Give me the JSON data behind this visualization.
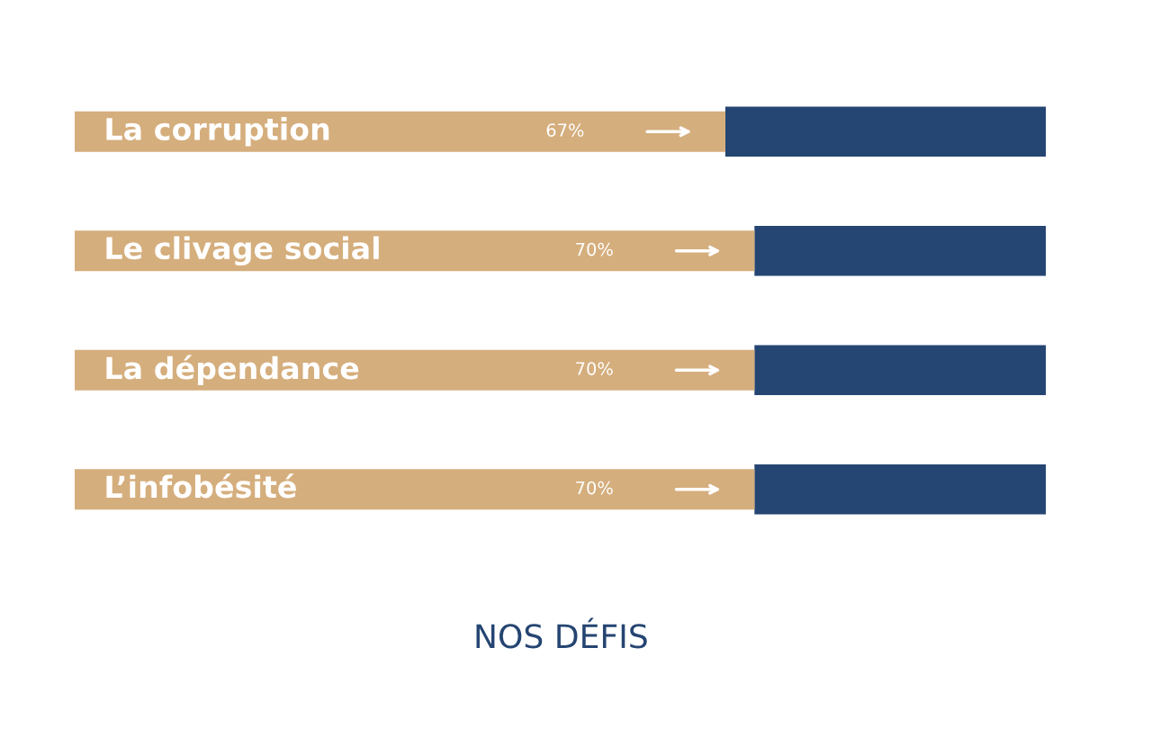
{
  "chart_data": {
    "type": "bar",
    "orientation": "horizontal",
    "stacked": true,
    "title": "NOS DÉFIS",
    "categories": [
      "La corruption",
      "Le clivage social",
      "La dépendance",
      "L’infobésité"
    ],
    "series": [
      {
        "color": "#d5ae7d",
        "values": [
          67,
          70,
          70,
          70
        ],
        "value_labels": [
          "67%",
          "70%",
          "70%",
          "70%"
        ]
      },
      {
        "color": "#254572",
        "values": [
          33,
          30,
          30,
          30
        ]
      }
    ],
    "xlim": [
      0,
      100
    ],
    "tick_labels": false
  }
}
